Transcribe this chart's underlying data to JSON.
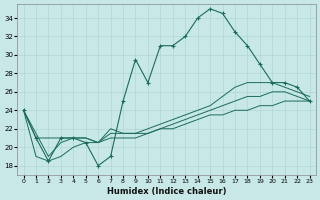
{
  "xlabel": "Humidex (Indice chaleur)",
  "bg_color": "#c8e8e8",
  "grid_color": "#b0d4d4",
  "line_color": "#1a6b5a",
  "xlim": [
    -0.5,
    23.5
  ],
  "ylim": [
    17,
    35.5
  ],
  "yticks": [
    18,
    20,
    22,
    24,
    26,
    28,
    30,
    32,
    34
  ],
  "xticks": [
    0,
    1,
    2,
    3,
    4,
    5,
    6,
    7,
    8,
    9,
    10,
    11,
    12,
    13,
    14,
    15,
    16,
    17,
    18,
    19,
    20,
    21,
    22,
    23
  ],
  "series1": [
    [
      0,
      24
    ],
    [
      1,
      21
    ],
    [
      2,
      18.5
    ],
    [
      3,
      21
    ],
    [
      4,
      21
    ],
    [
      5,
      20.5
    ],
    [
      6,
      18
    ],
    [
      7,
      19
    ],
    [
      8,
      25
    ],
    [
      9,
      29.5
    ],
    [
      10,
      27
    ],
    [
      11,
      31
    ],
    [
      12,
      31
    ],
    [
      13,
      32
    ],
    [
      14,
      34
    ],
    [
      15,
      35
    ],
    [
      16,
      34.5
    ],
    [
      17,
      32.5
    ],
    [
      18,
      31
    ],
    [
      19,
      29
    ],
    [
      20,
      27
    ],
    [
      21,
      27
    ],
    [
      22,
      26.5
    ],
    [
      23,
      25
    ]
  ],
  "series2": [
    [
      0,
      24
    ],
    [
      1,
      21
    ],
    [
      3,
      21
    ],
    [
      4,
      21
    ],
    [
      5,
      21
    ],
    [
      6,
      20.5
    ],
    [
      7,
      22
    ],
    [
      8,
      21.5
    ],
    [
      9,
      21.5
    ],
    [
      10,
      22
    ],
    [
      11,
      22.5
    ],
    [
      12,
      23
    ],
    [
      13,
      23.5
    ],
    [
      14,
      24
    ],
    [
      15,
      24.5
    ],
    [
      16,
      25.5
    ],
    [
      17,
      26.5
    ],
    [
      18,
      27
    ],
    [
      19,
      27
    ],
    [
      20,
      27
    ],
    [
      21,
      26.5
    ],
    [
      22,
      26
    ],
    [
      23,
      25.5
    ]
  ],
  "series3": [
    [
      0,
      24
    ],
    [
      2,
      19
    ],
    [
      3,
      20.5
    ],
    [
      4,
      21
    ],
    [
      5,
      21
    ],
    [
      6,
      20.5
    ],
    [
      7,
      21.5
    ],
    [
      8,
      21.5
    ],
    [
      9,
      21.5
    ],
    [
      10,
      21.5
    ],
    [
      11,
      22
    ],
    [
      12,
      22.5
    ],
    [
      13,
      23
    ],
    [
      14,
      23.5
    ],
    [
      15,
      24
    ],
    [
      16,
      24.5
    ],
    [
      17,
      25
    ],
    [
      18,
      25.5
    ],
    [
      19,
      25.5
    ],
    [
      20,
      26
    ],
    [
      21,
      26
    ],
    [
      22,
      25.5
    ],
    [
      23,
      25
    ]
  ],
  "series4": [
    [
      0,
      24
    ],
    [
      1,
      19
    ],
    [
      2,
      18.5
    ],
    [
      3,
      19
    ],
    [
      4,
      20
    ],
    [
      5,
      20.5
    ],
    [
      6,
      20.5
    ],
    [
      7,
      21
    ],
    [
      8,
      21
    ],
    [
      9,
      21
    ],
    [
      10,
      21.5
    ],
    [
      11,
      22
    ],
    [
      12,
      22
    ],
    [
      13,
      22.5
    ],
    [
      14,
      23
    ],
    [
      15,
      23.5
    ],
    [
      16,
      23.5
    ],
    [
      17,
      24
    ],
    [
      18,
      24
    ],
    [
      19,
      24.5
    ],
    [
      20,
      24.5
    ],
    [
      21,
      25
    ],
    [
      22,
      25
    ],
    [
      23,
      25
    ]
  ]
}
